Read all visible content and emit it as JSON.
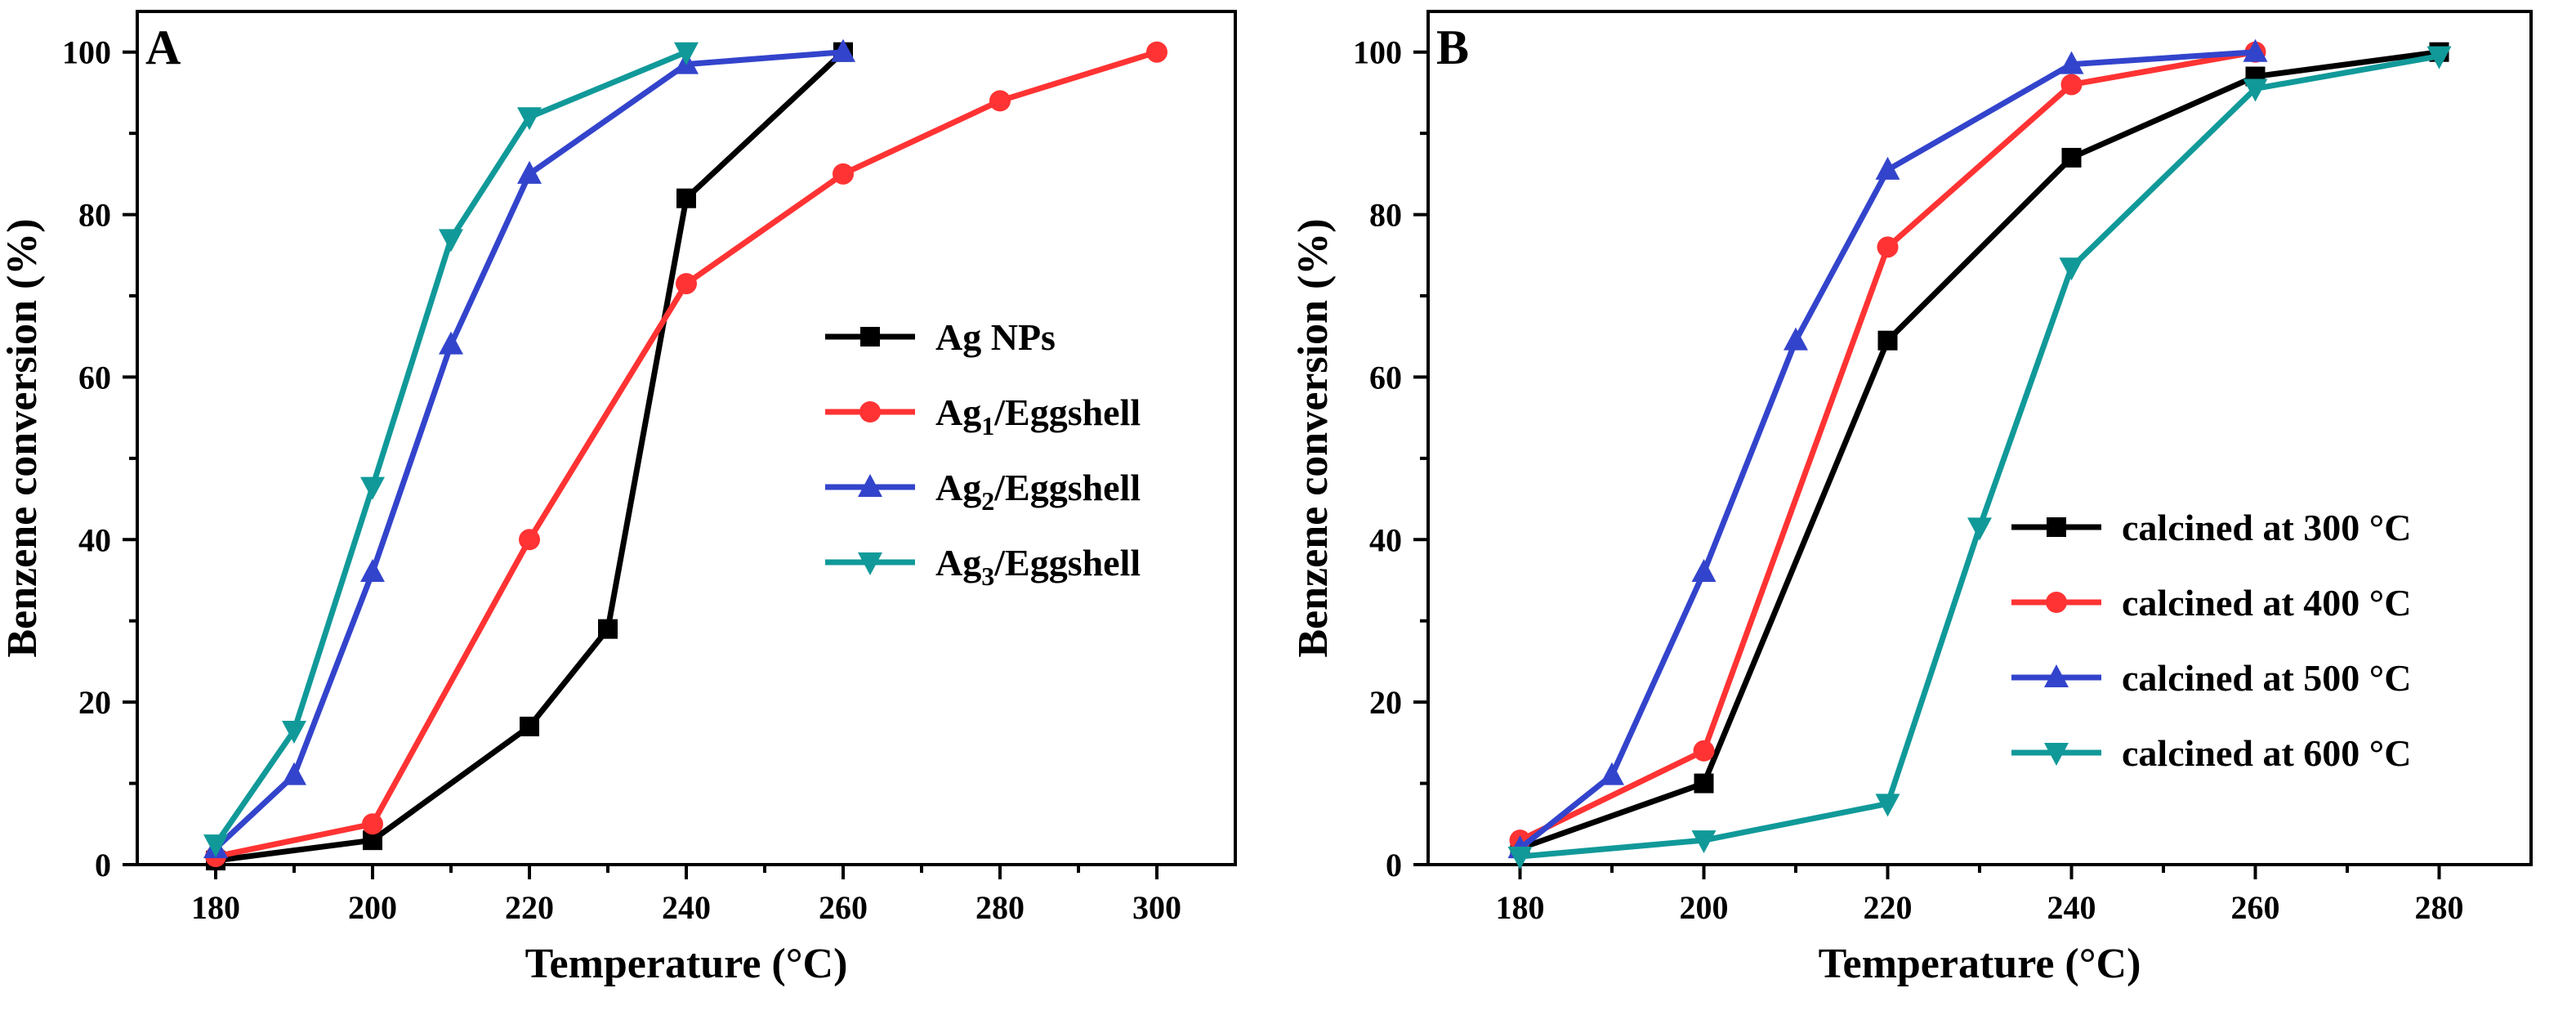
{
  "chart_data": [
    {
      "type": "line",
      "panel_label": "A",
      "xlabel": "Temperature (°C)",
      "ylabel": "Benzene conversion (%)",
      "xlim": [
        170,
        310
      ],
      "ylim": [
        0,
        105
      ],
      "xticks": [
        180,
        200,
        220,
        240,
        260,
        280,
        300
      ],
      "yticks": [
        0,
        20,
        40,
        60,
        80,
        100
      ],
      "legend_position": "center-right",
      "series": [
        {
          "name": "Ag NPs",
          "legend_main": "Ag NPs",
          "legend_sub": "",
          "legend_rest": "",
          "color": "#000000",
          "marker": "square",
          "x": [
            180,
            200,
            220,
            230,
            240,
            260
          ],
          "y": [
            0.5,
            3,
            17,
            29,
            82,
            100
          ]
        },
        {
          "name": "Ag1/Eggshell",
          "legend_main": "Ag",
          "legend_sub": "1",
          "legend_rest": "/Eggshell",
          "color": "#ff3333",
          "marker": "circle",
          "x": [
            180,
            200,
            220,
            240,
            260,
            280,
            300
          ],
          "y": [
            1,
            5,
            40,
            71.5,
            85,
            94,
            100
          ]
        },
        {
          "name": "Ag2/Eggshell",
          "legend_main": "Ag",
          "legend_sub": "2",
          "legend_rest": "/Eggshell",
          "color": "#3344cc",
          "marker": "triangle-up",
          "x": [
            180,
            190,
            200,
            210,
            220,
            240,
            260
          ],
          "y": [
            2,
            11,
            36,
            64,
            85,
            98.5,
            100
          ]
        },
        {
          "name": "Ag3/Eggshell",
          "legend_main": "Ag",
          "legend_sub": "3",
          "legend_rest": "/Eggshell",
          "color": "#119999",
          "marker": "triangle-down",
          "x": [
            180,
            190,
            200,
            210,
            220,
            240
          ],
          "y": [
            2.5,
            16.5,
            46.5,
            77,
            92,
            100
          ]
        }
      ]
    },
    {
      "type": "line",
      "panel_label": "B",
      "xlabel": "Temperature (°C)",
      "ylabel": "Benzene conversion (%)",
      "xlim": [
        170,
        290
      ],
      "ylim": [
        0,
        105
      ],
      "xticks": [
        180,
        200,
        220,
        240,
        260,
        280
      ],
      "yticks": [
        0,
        20,
        40,
        60,
        80,
        100
      ],
      "legend_position": "lower-right",
      "series": [
        {
          "name": "calcined at 300 °C",
          "legend_main": "calcined at 300 °C",
          "legend_sub": "",
          "legend_rest": "",
          "color": "#000000",
          "marker": "square",
          "x": [
            180,
            200,
            220,
            240,
            260,
            280
          ],
          "y": [
            2,
            10,
            64.5,
            87,
            97,
            100
          ]
        },
        {
          "name": "calcined at 400 °C",
          "legend_main": "calcined at 400 °C",
          "legend_sub": "",
          "legend_rest": "",
          "color": "#ff3333",
          "marker": "circle",
          "x": [
            180,
            200,
            220,
            240,
            260
          ],
          "y": [
            3,
            14,
            76,
            96,
            100
          ]
        },
        {
          "name": "calcined at 500 °C",
          "legend_main": "calcined at 500 °C",
          "legend_sub": "",
          "legend_rest": "",
          "color": "#3344cc",
          "marker": "triangle-up",
          "x": [
            180,
            190,
            200,
            210,
            220,
            240,
            260
          ],
          "y": [
            2,
            11,
            36,
            64.5,
            85.5,
            98.5,
            100
          ]
        },
        {
          "name": "calcined at 600 °C",
          "legend_main": "calcined at 600 °C",
          "legend_sub": "",
          "legend_rest": "",
          "color": "#119999",
          "marker": "triangle-down",
          "x": [
            180,
            200,
            220,
            230,
            240,
            260,
            280
          ],
          "y": [
            1,
            3,
            7.5,
            41.5,
            73.5,
            95.5,
            99.5
          ]
        }
      ]
    }
  ]
}
